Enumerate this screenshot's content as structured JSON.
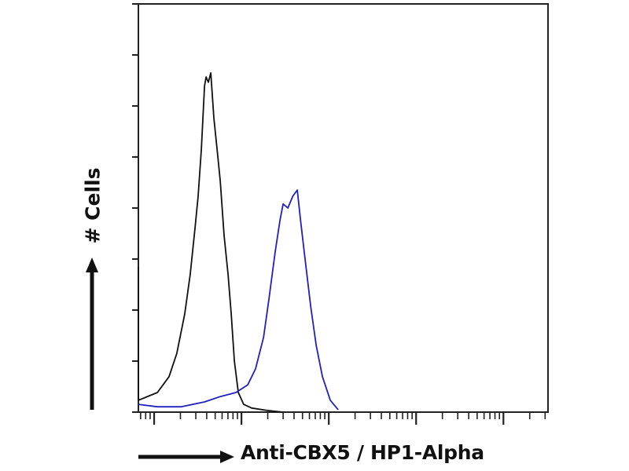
{
  "chart_data": {
    "type": "line",
    "title": "",
    "xlabel": "Anti-CBX5 / HP1-Alpha",
    "ylabel": "# Cells",
    "xscale": "log",
    "xlim": [
      0.66,
      32400
    ],
    "ylim": [
      0,
      100
    ],
    "grid": false,
    "legend": "none",
    "series": [
      {
        "color": "#111111",
        "x": [
          0.66,
          0.66,
          1.09,
          1.48,
          1.82,
          2.24,
          2.59,
          2.94,
          3.19,
          3.47,
          3.62,
          3.77,
          3.93,
          4.18,
          4.45,
          4.83,
          5.26,
          5.71,
          6.33,
          7.03,
          7.64,
          8.3,
          9.2,
          10.6,
          13.1,
          19.8,
          30.0
        ],
        "y": [
          35.6,
          2.9,
          4.8,
          8.7,
          14.4,
          24,
          33.7,
          45.2,
          52.9,
          64.4,
          72.1,
          79.8,
          82.1,
          80.8,
          83.1,
          72.1,
          64.4,
          56.7,
          43.3,
          33.7,
          24,
          12.5,
          4.8,
          1.9,
          1.0,
          0.4,
          0
        ]
      },
      {
        "color": "#2020c0",
        "x": [
          0.66,
          1.09,
          2.03,
          3.77,
          5.71,
          8.65,
          11.8,
          14.5,
          17.9,
          20.7,
          24.4,
          27.7,
          30.0,
          34.0,
          38.7,
          43.6,
          47.4,
          53.5,
          62.0,
          71.8,
          84.6,
          104,
          128
        ],
        "y": [
          1.9,
          1.3,
          1.3,
          2.5,
          3.8,
          4.8,
          6.7,
          10.6,
          18.3,
          27.9,
          39.4,
          47.1,
          51,
          50,
          52.9,
          54.4,
          47.1,
          37.5,
          26,
          16.3,
          8.7,
          2.9,
          0.6
        ]
      }
    ],
    "yticks": [
      0,
      12.5,
      25,
      37.5,
      50,
      62.5,
      75,
      87.5,
      100
    ],
    "xticks_major": [
      10,
      100,
      1000,
      10000
    ]
  }
}
